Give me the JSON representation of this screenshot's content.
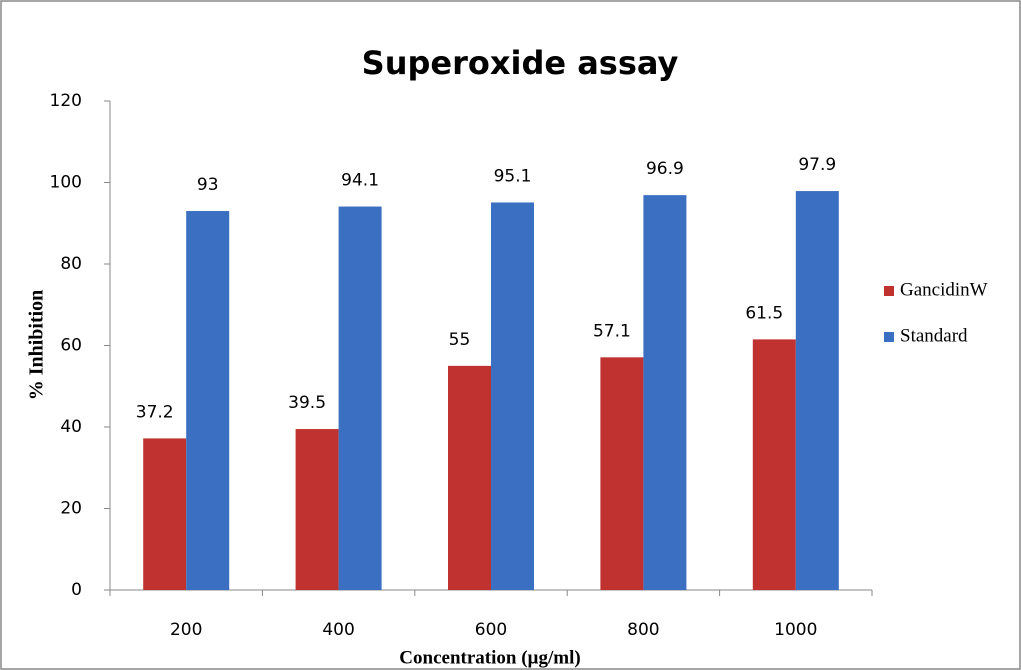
{
  "chart_data": {
    "type": "bar",
    "title": "Superoxide assay",
    "xlabel": "Concentration (µg/ml)",
    "ylabel": "% Inhibition",
    "categories": [
      "200",
      "400",
      "600",
      "800",
      "1000"
    ],
    "series": [
      {
        "name": "GancidinW",
        "color": "#c0322f",
        "values": [
          37.2,
          39.5,
          55,
          57.1,
          61.5
        ]
      },
      {
        "name": "Standard",
        "color": "#3b6fc1",
        "values": [
          93,
          94.1,
          95.1,
          96.9,
          97.9
        ]
      }
    ],
    "ylim": [
      0,
      120
    ],
    "yticks": [
      0,
      20,
      40,
      60,
      80,
      100,
      120
    ],
    "grid": false,
    "legend": "right"
  }
}
